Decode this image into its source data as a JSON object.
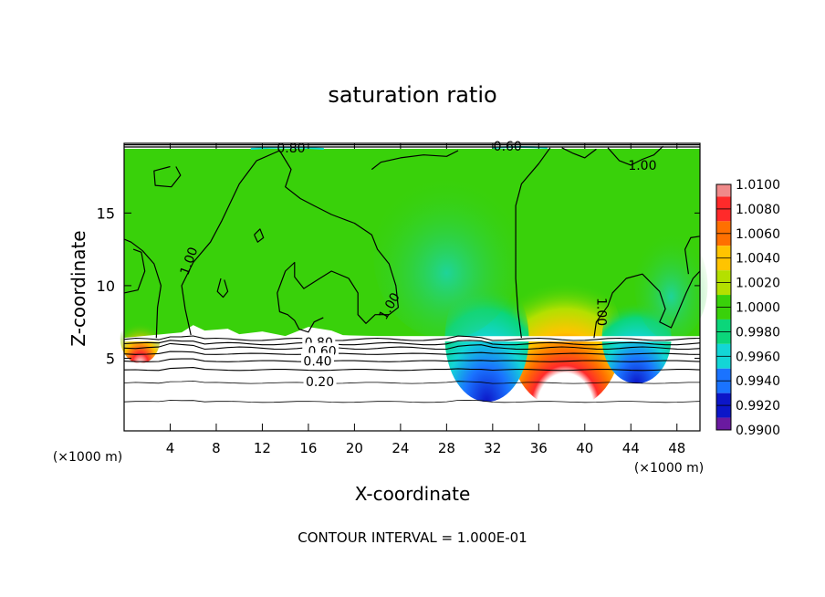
{
  "chart_data": {
    "type": "contour",
    "title": "saturation ratio",
    "xlabel": "X-coordinate",
    "ylabel": "Z-coordinate",
    "x_units": "(×1000 m)",
    "z_units": "(×1000 m)",
    "xlim": [
      0,
      50
    ],
    "ylim": [
      0,
      19.8
    ],
    "x_ticks": [
      4,
      8,
      12,
      16,
      20,
      24,
      28,
      32,
      36,
      40,
      44,
      48
    ],
    "y_ticks": [
      5,
      10,
      15
    ],
    "footer": "CONTOUR INTERVAL = 1.000E-01",
    "colorbar": {
      "levels": [
        "1.0100",
        "1.0080",
        "1.0060",
        "1.0040",
        "1.0020",
        "1.0000",
        "0.9980",
        "0.9960",
        "0.9940",
        "0.9920",
        "0.9900"
      ],
      "colors": [
        "#f08a8a",
        "#ff2a2a",
        "#ff7000",
        "#ffc400",
        "#b4e000",
        "#39d10a",
        "#0bd67a",
        "#13d6d6",
        "#1a73ff",
        "#0c16c8",
        "#6a1aa0"
      ]
    },
    "contour_labels": [
      {
        "text": "0.80",
        "x": 14.5,
        "z": 19.5
      },
      {
        "text": "0.60",
        "x": 33.3,
        "z": 19.6
      },
      {
        "text": "1.00",
        "x": 45.0,
        "z": 18.3
      },
      {
        "text": "1.00",
        "x": 5.6,
        "z": 11.7
      },
      {
        "text": "1.00",
        "x": 23.0,
        "z": 8.6
      },
      {
        "text": "1.00",
        "x": 41.5,
        "z": 8.2
      },
      {
        "text": "0.80",
        "x": 16.9,
        "z": 6.1
      },
      {
        "text": "0.60",
        "x": 17.2,
        "z": 5.5
      },
      {
        "text": "0.40",
        "x": 16.8,
        "z": 4.8
      },
      {
        "text": "0.20",
        "x": 17.0,
        "z": 3.4
      }
    ],
    "background_level_z": [
      2.0,
      3.3,
      4.2,
      4.8,
      5.3,
      5.7,
      6.0,
      6.3
    ],
    "cloud_base_z": 6.4
  }
}
